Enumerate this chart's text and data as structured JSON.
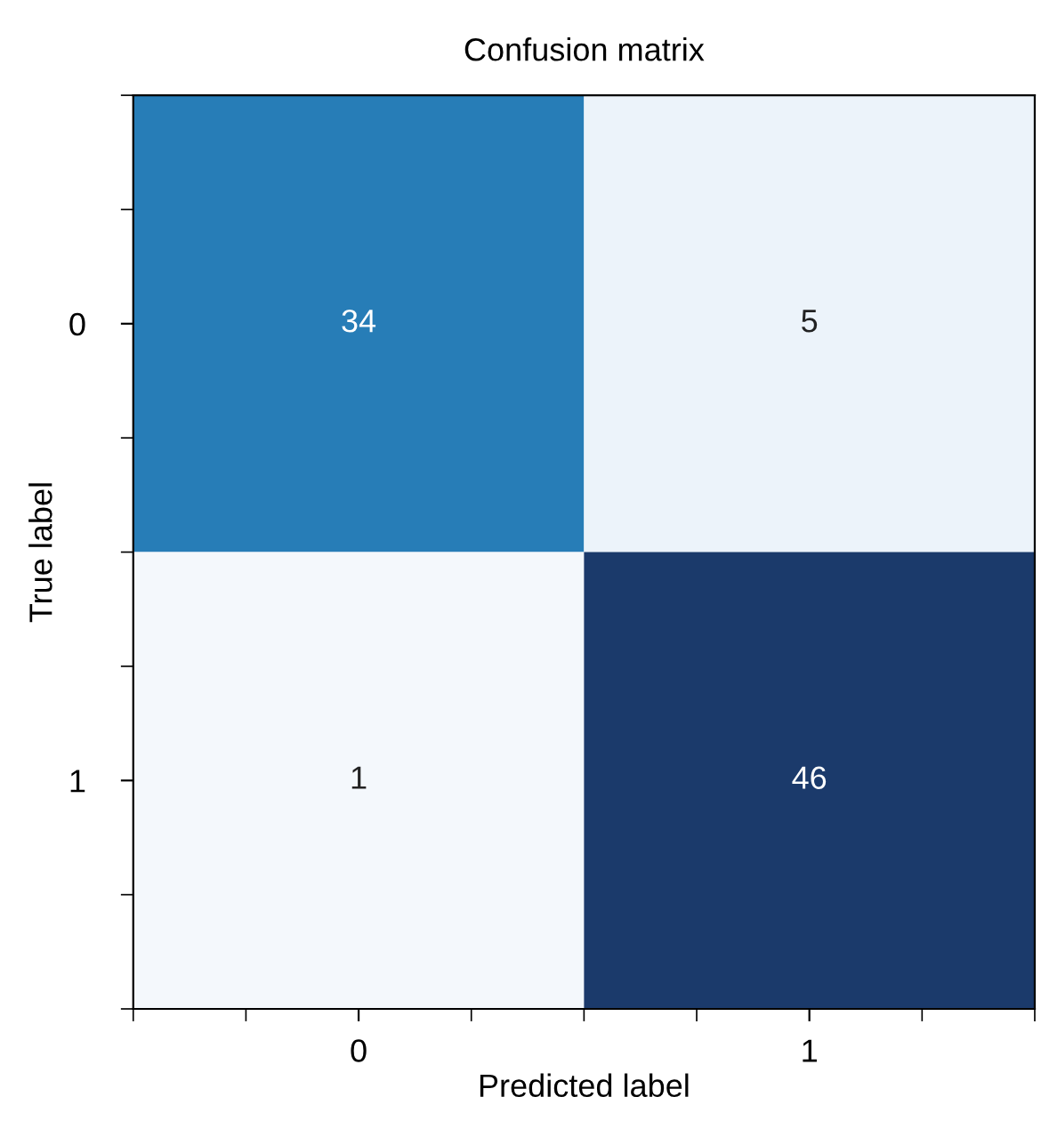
{
  "chart_data": {
    "type": "heatmap",
    "title": "Confusion matrix",
    "xlabel": "Predicted label",
    "ylabel": "True label",
    "categories": [
      "0",
      "1"
    ],
    "y_categories": [
      "0",
      "1"
    ],
    "cells": [
      [
        34,
        5
      ],
      [
        1,
        46
      ]
    ],
    "data_labels": true,
    "grid": false
  }
}
